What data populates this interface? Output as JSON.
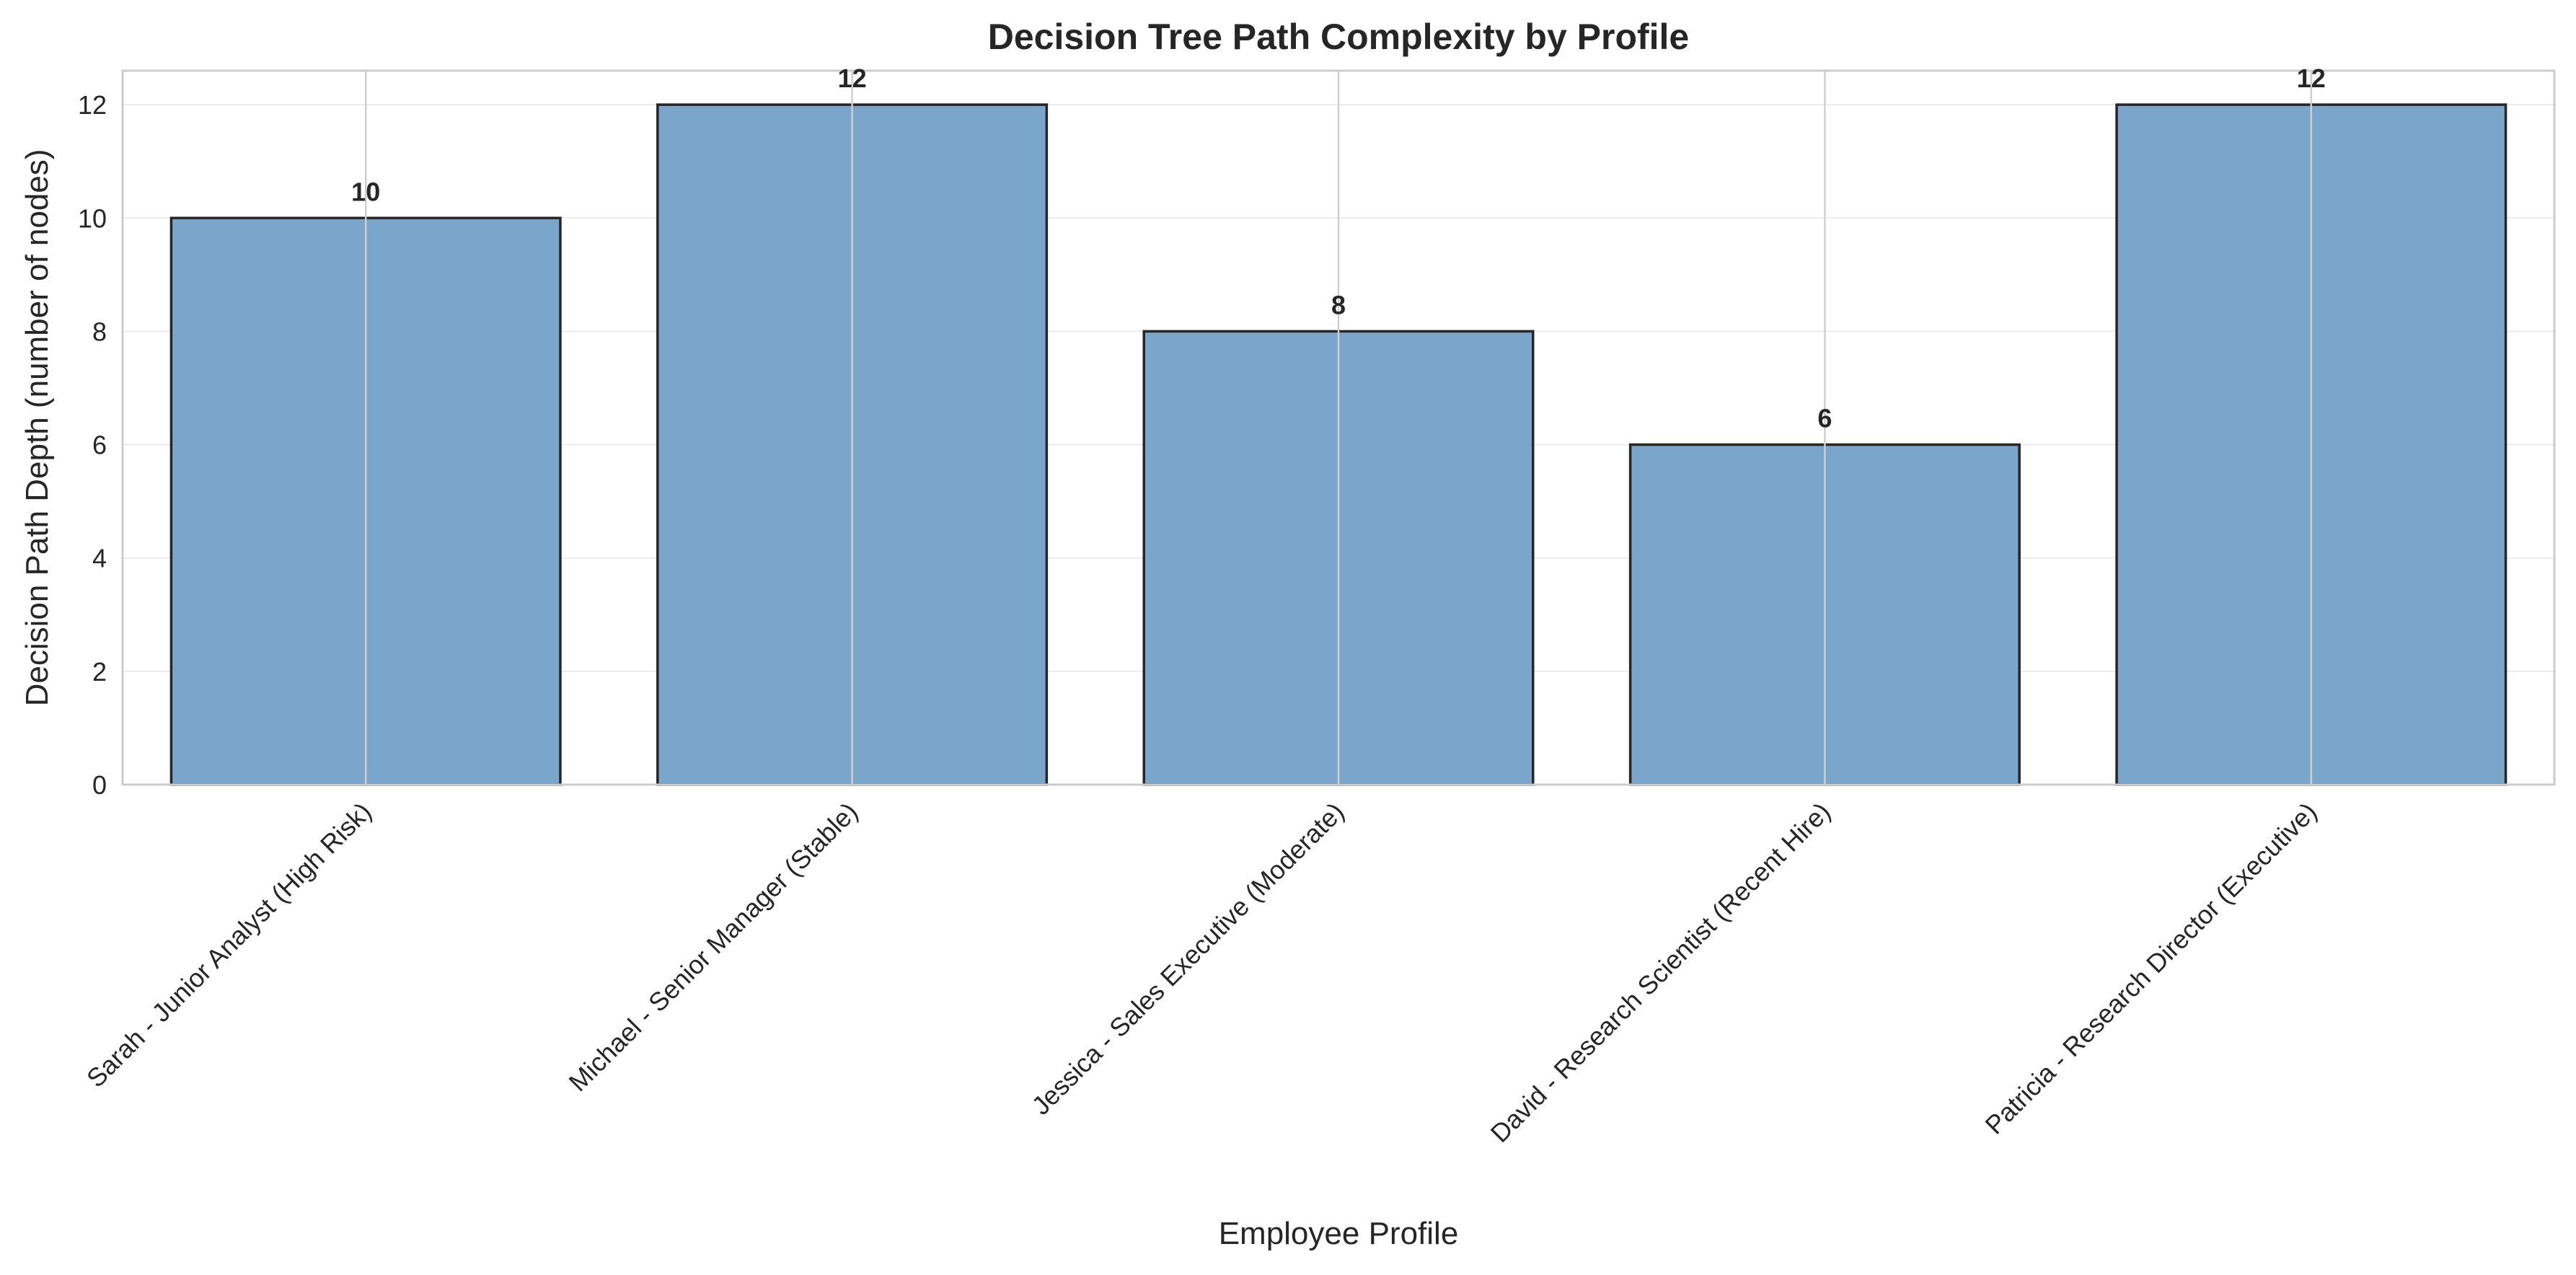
{
  "chart_data": {
    "type": "bar",
    "title": "Decision Tree Path Complexity by Profile",
    "xlabel": "Employee Profile",
    "ylabel": "Decision Path Depth (number of nodes)",
    "categories": [
      "Sarah - Junior Analyst (High Risk)",
      "Michael - Senior Manager (Stable)",
      "Jessica - Sales Executive (Moderate)",
      "David - Research Scientist (Recent Hire)",
      "Patricia - Research Director (Executive)"
    ],
    "values": [
      10,
      12,
      8,
      6,
      12
    ],
    "data_labels": [
      "10",
      "12",
      "8",
      "6",
      "12"
    ],
    "ylim": [
      0,
      12.6
    ],
    "yticks": [
      0,
      2,
      4,
      6,
      8,
      10,
      12
    ],
    "ytick_labels": [
      "0",
      "2",
      "4",
      "6",
      "8",
      "10",
      "12"
    ],
    "grid": true,
    "bar_color": "#7ba6cb",
    "edge_color": "#262626"
  }
}
